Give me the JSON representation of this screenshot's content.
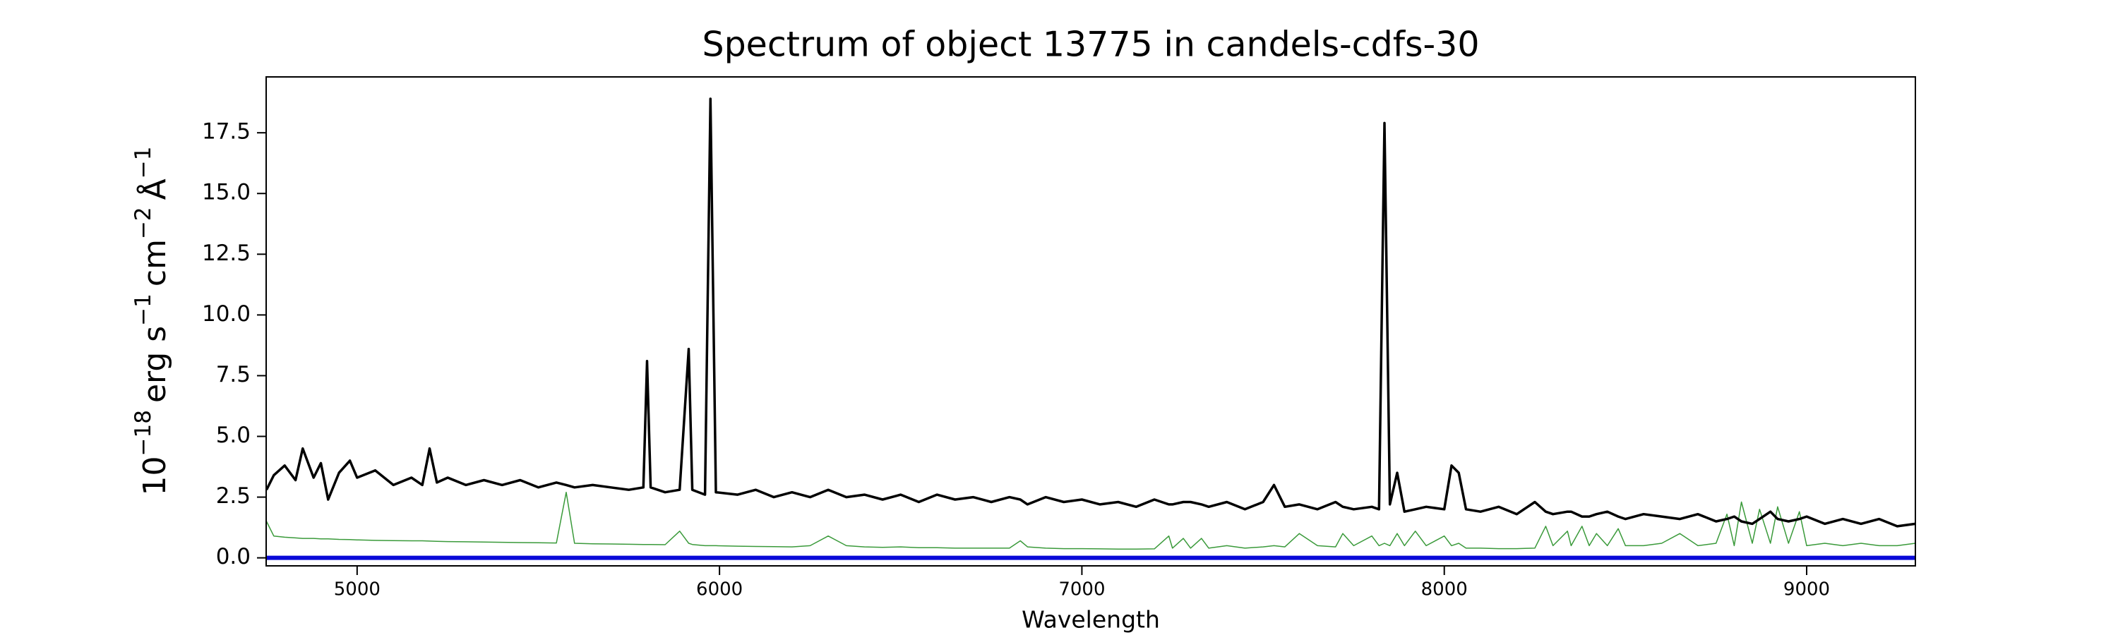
{
  "chart_data": {
    "type": "line",
    "title": "Spectrum of object 13775 in candels-cdfs-30",
    "xlabel": "Wavelength",
    "ylabel": [
      "10",
      "−18",
      "erg s",
      "−1",
      "cm",
      "−2",
      "Å",
      "−1"
    ],
    "xlim": [
      4749,
      9300
    ],
    "ylim": [
      -0.33,
      19.8
    ],
    "xticks": [
      5000,
      6000,
      7000,
      8000,
      9000
    ],
    "yticks": [
      {
        "value": 0,
        "label": "0.0"
      },
      2.5,
      {
        "value": 5,
        "label": "5.0"
      },
      7.5,
      {
        "value": 10,
        "label": "10.0"
      },
      12.5,
      {
        "value": 15,
        "label": "15.0"
      },
      17.5
    ],
    "x": [
      4750,
      4770,
      4800,
      4830,
      4850,
      4880,
      4900,
      4920,
      4950,
      4980,
      5000,
      5050,
      5100,
      5150,
      5180,
      5200,
      5220,
      5250,
      5300,
      5350,
      5400,
      5450,
      5500,
      5550,
      5577,
      5600,
      5650,
      5700,
      5750,
      5790,
      5800,
      5810,
      5850,
      5890,
      5915,
      5925,
      5960,
      5975,
      5990,
      6050,
      6100,
      6150,
      6200,
      6250,
      6300,
      6350,
      6400,
      6450,
      6500,
      6550,
      6600,
      6650,
      6700,
      6750,
      6800,
      6830,
      6850,
      6900,
      6950,
      7000,
      7050,
      7100,
      7150,
      7200,
      7240,
      7250,
      7280,
      7300,
      7330,
      7350,
      7400,
      7450,
      7500,
      7530,
      7560,
      7600,
      7650,
      7700,
      7720,
      7750,
      7800,
      7820,
      7835,
      7850,
      7870,
      7890,
      7920,
      7950,
      8000,
      8020,
      8040,
      8060,
      8100,
      8150,
      8200,
      8250,
      8280,
      8300,
      8340,
      8350,
      8380,
      8400,
      8420,
      8450,
      8480,
      8500,
      8550,
      8600,
      8650,
      8700,
      8750,
      8780,
      8800,
      8820,
      8850,
      8870,
      8900,
      8920,
      8950,
      8980,
      9000,
      9050,
      9100,
      9150,
      9200,
      9250,
      9300
    ],
    "series": [
      {
        "color": "#3a9a3a",
        "width": 1.5,
        "values": [
          1.5,
          0.9,
          0.85,
          0.82,
          0.8,
          0.8,
          0.78,
          0.78,
          0.76,
          0.75,
          0.74,
          0.72,
          0.71,
          0.7,
          0.7,
          0.69,
          0.68,
          0.67,
          0.66,
          0.65,
          0.64,
          0.63,
          0.62,
          0.61,
          2.7,
          0.6,
          0.58,
          0.57,
          0.56,
          0.55,
          0.55,
          0.55,
          0.54,
          1.1,
          0.6,
          0.55,
          0.5,
          0.5,
          0.5,
          0.48,
          0.47,
          0.46,
          0.45,
          0.5,
          0.9,
          0.5,
          0.45,
          0.43,
          0.45,
          0.42,
          0.42,
          0.4,
          0.4,
          0.4,
          0.4,
          0.7,
          0.45,
          0.4,
          0.38,
          0.38,
          0.37,
          0.36,
          0.36,
          0.37,
          0.9,
          0.4,
          0.8,
          0.4,
          0.8,
          0.4,
          0.5,
          0.4,
          0.45,
          0.5,
          0.45,
          1.0,
          0.5,
          0.45,
          1.0,
          0.5,
          0.9,
          0.5,
          0.6,
          0.5,
          1.0,
          0.5,
          1.1,
          0.5,
          0.9,
          0.5,
          0.6,
          0.4,
          0.4,
          0.38,
          0.38,
          0.4,
          1.3,
          0.5,
          1.1,
          0.5,
          1.3,
          0.5,
          1.0,
          0.5,
          1.2,
          0.5,
          0.5,
          0.6,
          1.0,
          0.5,
          0.6,
          1.8,
          0.5,
          2.3,
          0.6,
          2.0,
          0.6,
          2.1,
          0.6,
          1.9,
          0.5,
          0.6,
          0.5,
          0.6,
          0.5,
          0.5,
          0.6
        ]
      },
      {
        "color": "#000000",
        "width": 3.5,
        "values": [
          2.8,
          3.4,
          3.8,
          3.2,
          4.5,
          3.3,
          3.9,
          2.4,
          3.5,
          4.0,
          3.3,
          3.6,
          3.0,
          3.3,
          3.0,
          4.5,
          3.1,
          3.3,
          3.0,
          3.2,
          3.0,
          3.2,
          2.9,
          3.1,
          3.0,
          2.9,
          3.0,
          2.9,
          2.8,
          2.9,
          8.1,
          2.9,
          2.7,
          2.8,
          8.6,
          2.8,
          2.6,
          18.9,
          2.7,
          2.6,
          2.8,
          2.5,
          2.7,
          2.5,
          2.8,
          2.5,
          2.6,
          2.4,
          2.6,
          2.3,
          2.6,
          2.4,
          2.5,
          2.3,
          2.5,
          2.4,
          2.2,
          2.5,
          2.3,
          2.4,
          2.2,
          2.3,
          2.1,
          2.4,
          2.2,
          2.2,
          2.3,
          2.3,
          2.2,
          2.1,
          2.3,
          2.0,
          2.3,
          3.0,
          2.1,
          2.2,
          2.0,
          2.3,
          2.1,
          2.0,
          2.1,
          2.0,
          17.9,
          2.2,
          3.5,
          1.9,
          2.0,
          2.1,
          2.0,
          3.8,
          3.5,
          2.0,
          1.9,
          2.1,
          1.8,
          2.3,
          1.9,
          1.8,
          1.9,
          1.9,
          1.7,
          1.7,
          1.8,
          1.9,
          1.7,
          1.6,
          1.8,
          1.7,
          1.6,
          1.8,
          1.5,
          1.6,
          1.7,
          1.5,
          1.4,
          1.6,
          1.9,
          1.6,
          1.5,
          1.6,
          1.7,
          1.4,
          1.6,
          1.4,
          1.6,
          1.3,
          1.4
        ]
      },
      {
        "color": "#0a0ad8",
        "width": 6,
        "x": [
          4749,
          9300
        ],
        "values": [
          0,
          0
        ]
      }
    ]
  }
}
